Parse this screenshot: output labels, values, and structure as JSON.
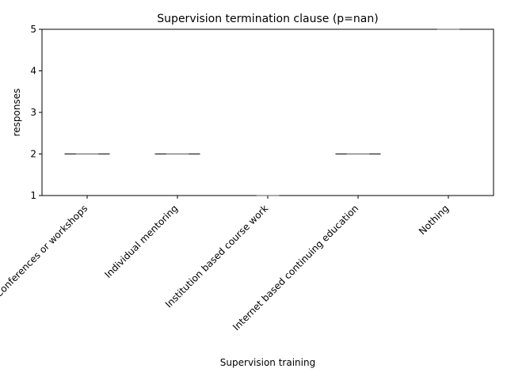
{
  "chart_data": {
    "type": "violin",
    "title": "Supervision termination clause (p=nan)",
    "xlabel": "Supervision training",
    "ylabel": "responses",
    "categories": [
      "Conferences or workshops",
      "Individual mentoring",
      "Institution based course work",
      "Internet based continuing education",
      "Nothing"
    ],
    "values": [
      2,
      2,
      1,
      2,
      5
    ],
    "ylim": [
      1,
      5
    ],
    "yticks": [
      "1",
      "2",
      "3",
      "4",
      "5"
    ],
    "grid": false,
    "legend": "none"
  }
}
